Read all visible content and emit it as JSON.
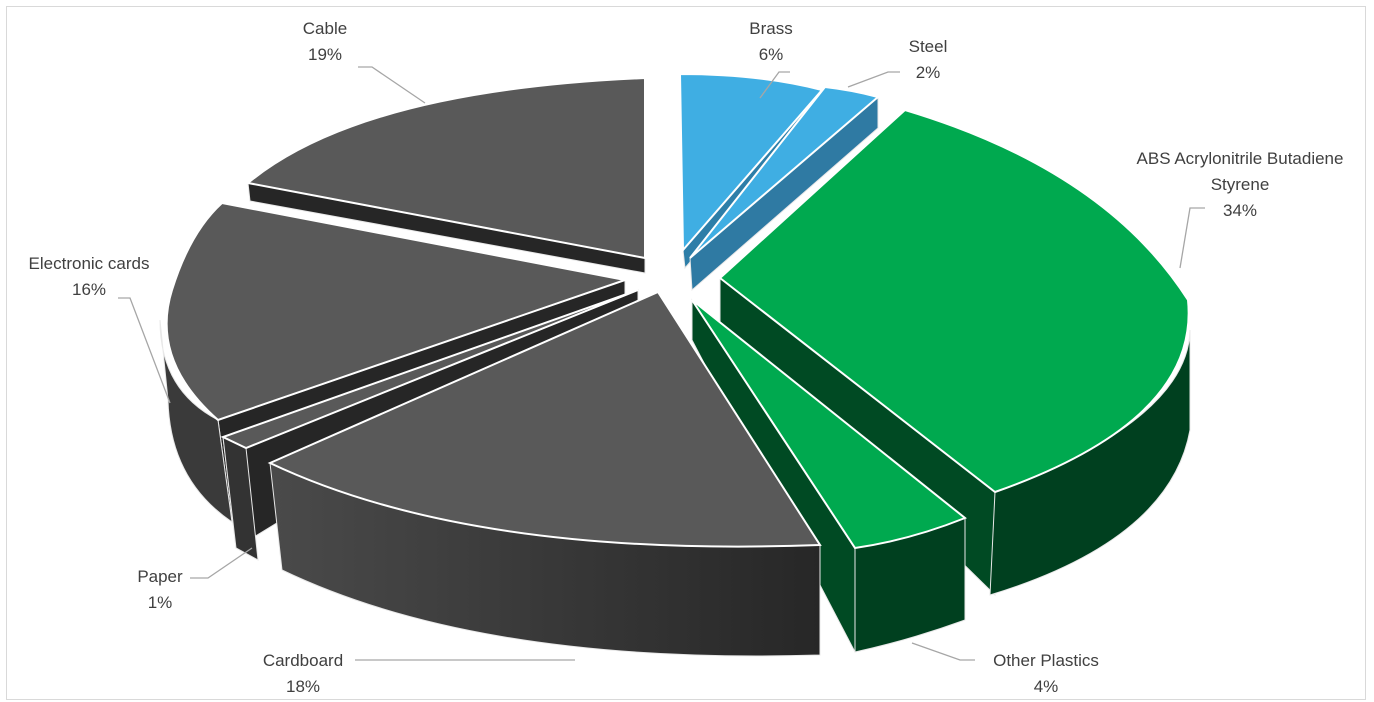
{
  "chart_data": {
    "type": "pie",
    "title": "",
    "slices": [
      {
        "label": "ABS Acrylonitrile Butadiene Styrene",
        "value_label": "34%",
        "value": 34,
        "color": "#00A94F"
      },
      {
        "label": "Other Plastics",
        "value_label": "4%",
        "value": 4,
        "color": "#00A94F"
      },
      {
        "label": "Cardboard",
        "value_label": "18%",
        "value": 18,
        "color": "#595959"
      },
      {
        "label": "Paper",
        "value_label": "1%",
        "value": 1,
        "color": "#595959"
      },
      {
        "label": "Electronic cards",
        "value_label": "16%",
        "value": 16,
        "color": "#595959"
      },
      {
        "label": "Cable",
        "value_label": "19%",
        "value": 19,
        "color": "#595959"
      },
      {
        "label": "Brass",
        "value_label": "6%",
        "value": 6,
        "color": "#3FAEE3"
      },
      {
        "label": "Steel",
        "value_label": "2%",
        "value": 2,
        "color": "#3FAEE3"
      }
    ]
  }
}
